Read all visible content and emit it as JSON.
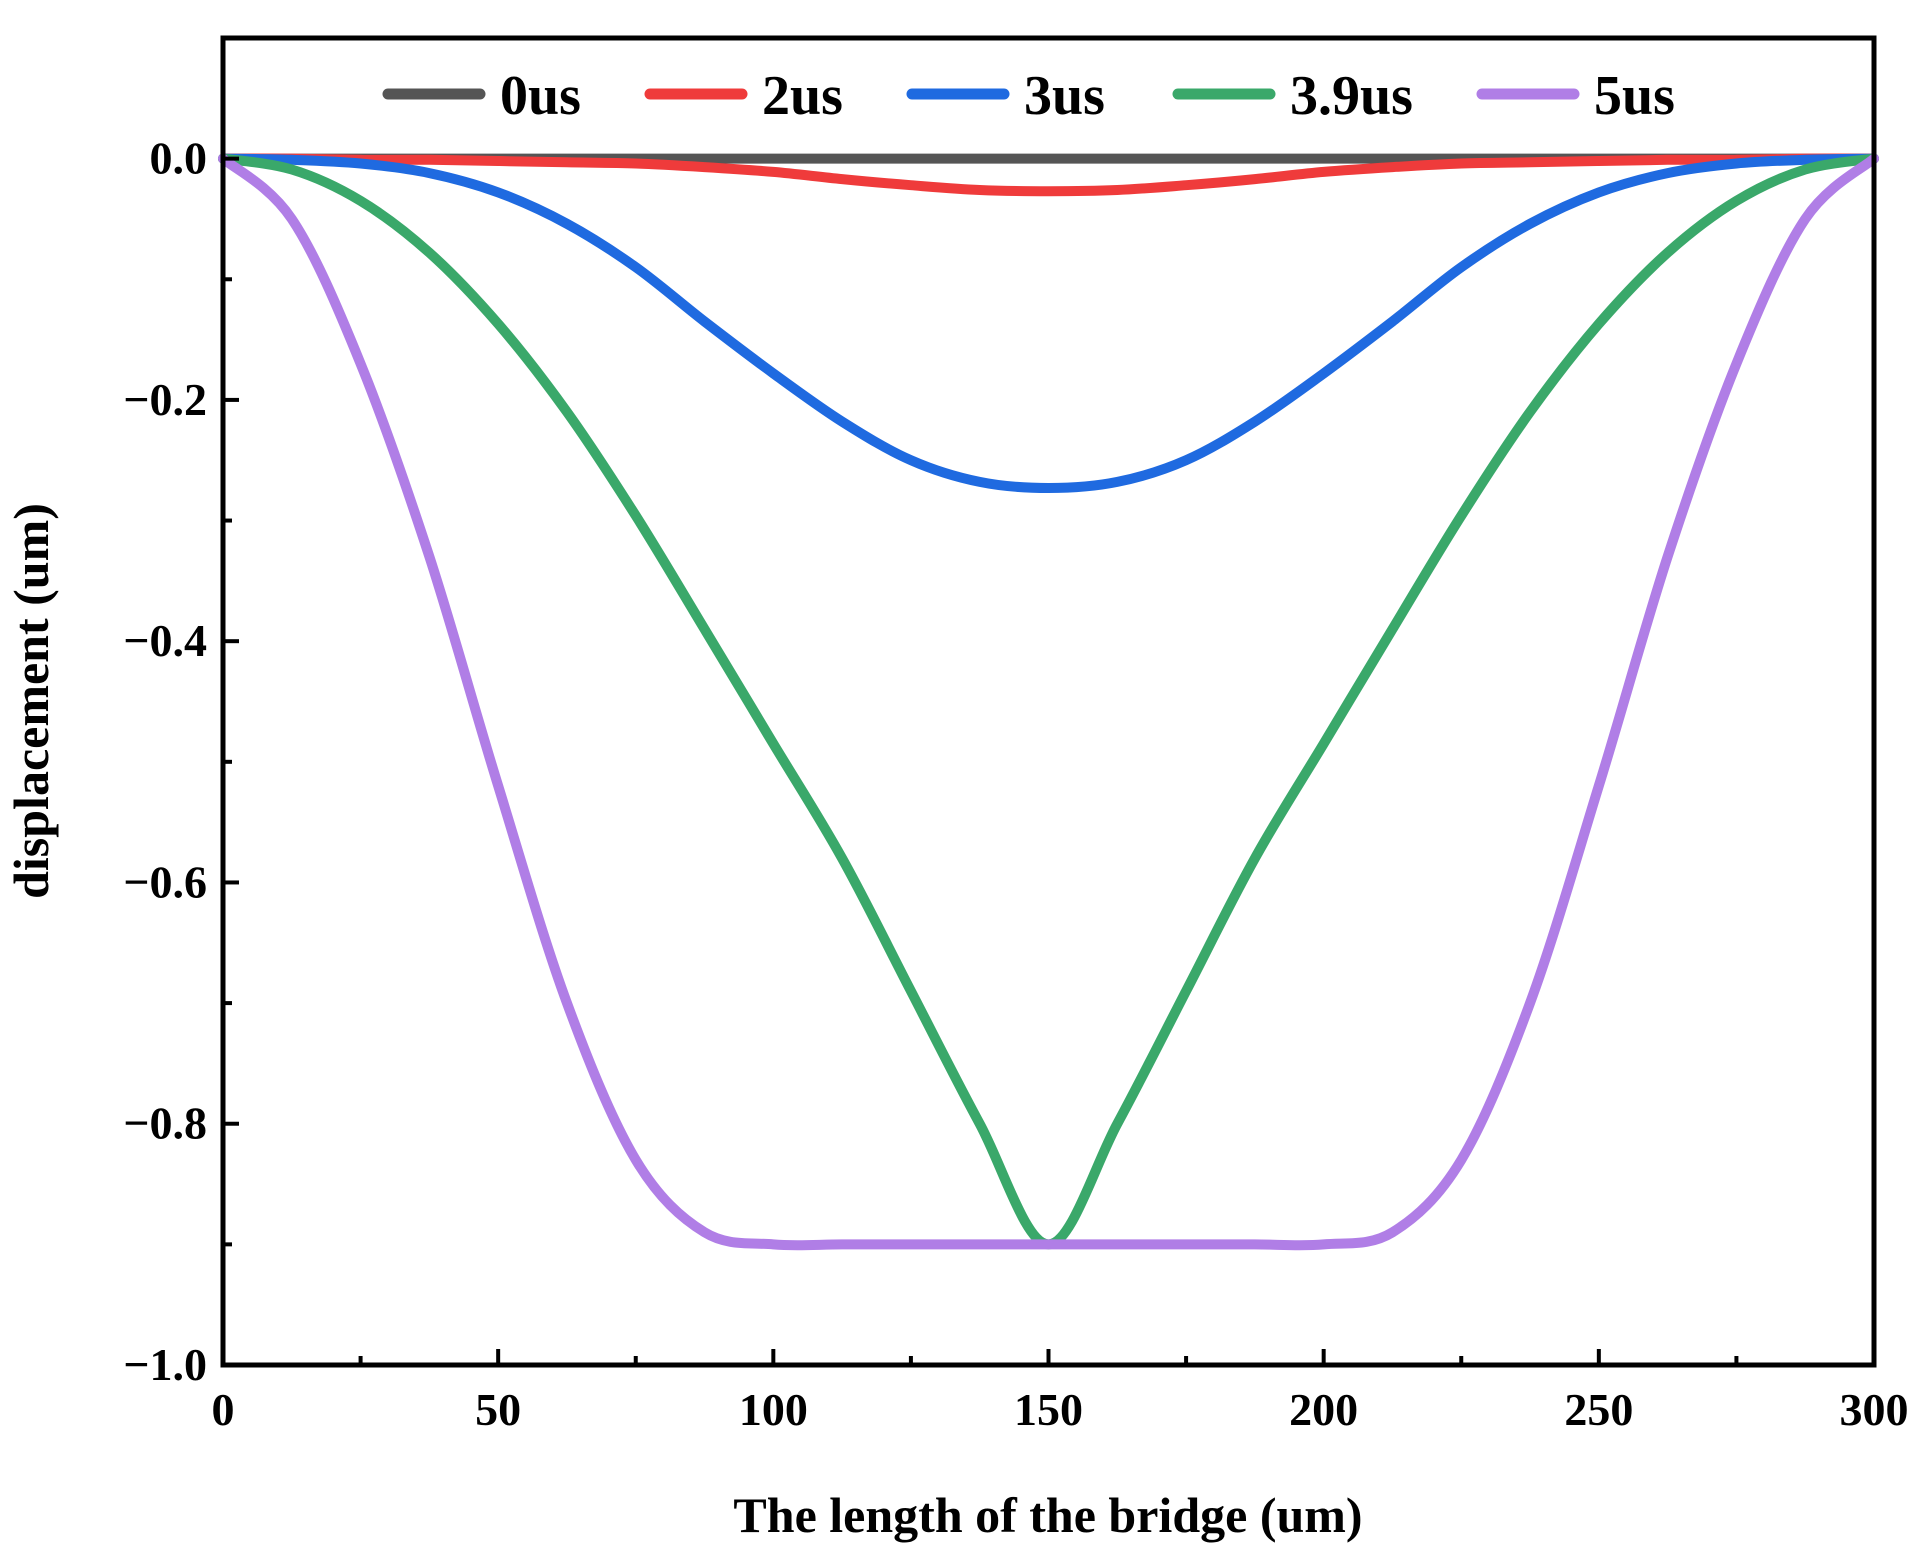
{
  "chart_data": {
    "type": "line",
    "title": "",
    "xlabel": "The length of the bridge (um)",
    "ylabel": "displacement  (um)",
    "xlim": [
      0,
      300
    ],
    "ylim": [
      -1.0,
      0.1
    ],
    "xticks": [
      0,
      50,
      100,
      150,
      200,
      250,
      300
    ],
    "xtick_labels": [
      "0",
      "50",
      "100",
      "150",
      "200",
      "250",
      "300"
    ],
    "yticks": [
      0.0,
      -0.2,
      -0.4,
      -0.6,
      -0.8,
      -1.0
    ],
    "ytick_labels": [
      "0.0",
      "−0.2",
      "−0.4",
      "−0.6",
      "−0.8",
      "−1.0"
    ],
    "grid": false,
    "legend_position": "top",
    "x": [
      0,
      12.5,
      25,
      37.5,
      50,
      62.5,
      75,
      87.5,
      100,
      112.5,
      125,
      137.5,
      150,
      162.5,
      175,
      187.5,
      200,
      212.5,
      225,
      237.5,
      250,
      262.5,
      275,
      287.5,
      300
    ],
    "series": [
      {
        "name": "0us",
        "color": "#555555",
        "values": [
          0,
          0,
          0,
          0,
          0,
          0,
          0,
          0,
          0,
          0,
          0,
          0,
          0,
          0,
          0,
          0,
          0,
          0,
          0,
          0,
          0,
          0,
          0,
          0,
          0
        ]
      },
      {
        "name": "2us",
        "color": "#ef3b3b",
        "values": [
          0,
          0,
          -0.001,
          -0.001,
          -0.002,
          -0.003,
          -0.004,
          -0.007,
          -0.011,
          -0.017,
          -0.022,
          -0.026,
          -0.027,
          -0.026,
          -0.022,
          -0.017,
          -0.011,
          -0.007,
          -0.004,
          -0.003,
          -0.002,
          -0.001,
          -0.001,
          0,
          0
        ]
      },
      {
        "name": "3us",
        "color": "#1f6ae0",
        "values": [
          0,
          -0.001,
          -0.004,
          -0.012,
          -0.028,
          -0.054,
          -0.09,
          -0.135,
          -0.178,
          -0.218,
          -0.25,
          -0.268,
          -0.273,
          -0.268,
          -0.25,
          -0.218,
          -0.178,
          -0.135,
          -0.09,
          -0.054,
          -0.028,
          -0.012,
          -0.004,
          -0.001,
          0
        ]
      },
      {
        "name": "3.9us",
        "color": "#3aa86a",
        "values": [
          0,
          -0.009,
          -0.035,
          -0.078,
          -0.137,
          -0.21,
          -0.296,
          -0.39,
          -0.485,
          -0.58,
          -0.69,
          -0.8,
          -0.9,
          -0.8,
          -0.69,
          -0.58,
          -0.485,
          -0.39,
          -0.296,
          -0.21,
          -0.137,
          -0.078,
          -0.035,
          -0.009,
          0
        ]
      },
      {
        "name": "5us",
        "color": "#b07ee6",
        "values": [
          0,
          -0.05,
          -0.17,
          -0.33,
          -0.52,
          -0.7,
          -0.83,
          -0.89,
          -0.9,
          -0.9,
          -0.9,
          -0.9,
          -0.9,
          -0.9,
          -0.9,
          -0.9,
          -0.9,
          -0.89,
          -0.83,
          -0.7,
          -0.52,
          -0.33,
          -0.17,
          -0.05,
          0
        ]
      }
    ]
  }
}
